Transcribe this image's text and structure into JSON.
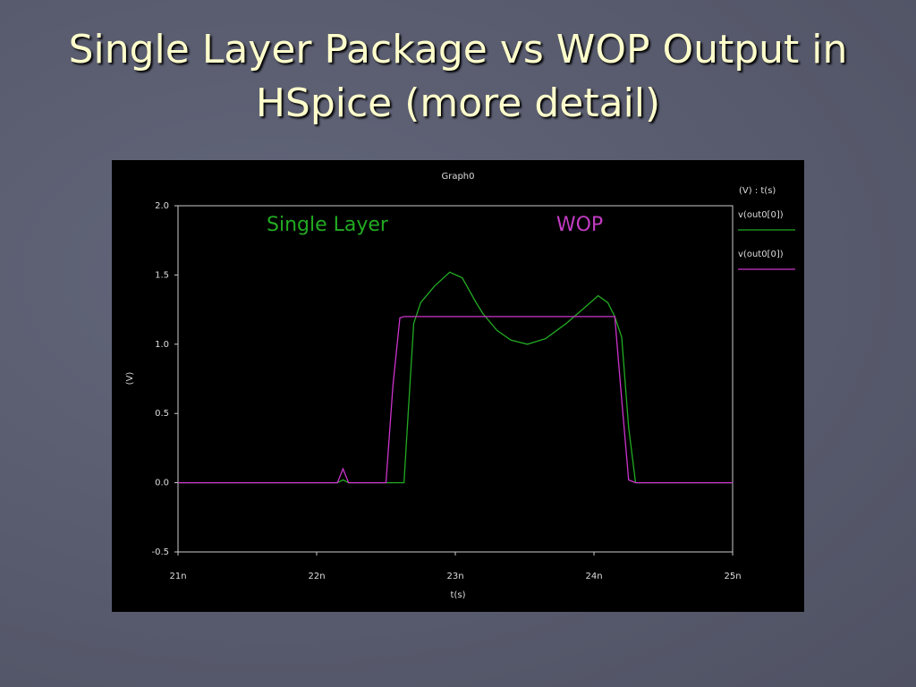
{
  "chart_data": {
    "type": "line",
    "page_title": "Single Layer Package vs WOP Output in HSpice (more detail)",
    "title": "Graph0",
    "xlabel": "t(s)",
    "ylabel": "(V)",
    "legend_title": "(V) : t(s)",
    "annotations": [
      {
        "text": "Single Layer",
        "color": "#22aa22"
      },
      {
        "text": "WOP",
        "color": "#c23cc2"
      }
    ],
    "x": [
      21,
      22.15,
      22.19,
      22.23,
      22.5,
      22.55,
      22.6,
      22.63,
      22.66,
      22.7,
      22.75,
      22.85,
      22.96,
      23.05,
      23.15,
      23.2,
      23.3,
      23.4,
      23.52,
      23.65,
      23.8,
      23.95,
      24.03,
      24.1,
      24.15,
      24.2,
      24.25,
      24.3,
      25
    ],
    "series": [
      {
        "name": "v(out0[0])",
        "color": "#22aa22",
        "values": [
          0,
          0,
          0.02,
          0,
          0,
          0,
          0,
          0,
          0.5,
          1.15,
          1.3,
          1.42,
          1.52,
          1.48,
          1.3,
          1.22,
          1.1,
          1.03,
          1.0,
          1.04,
          1.15,
          1.28,
          1.35,
          1.3,
          1.2,
          1.05,
          0.4,
          0,
          0
        ]
      },
      {
        "name": "v(out0[0])",
        "color": "#cc33cc",
        "values": [
          0,
          0,
          0.1,
          0,
          0,
          0.7,
          1.19,
          1.2,
          1.2,
          1.2,
          1.2,
          1.2,
          1.2,
          1.2,
          1.2,
          1.2,
          1.2,
          1.2,
          1.2,
          1.2,
          1.2,
          1.2,
          1.2,
          1.2,
          1.2,
          0.6,
          0.02,
          0,
          0
        ]
      }
    ],
    "xlim": [
      21,
      25
    ],
    "xticks": [
      {
        "value": 21,
        "label": "21n"
      },
      {
        "value": 22,
        "label": "22n"
      },
      {
        "value": 23,
        "label": "23n"
      },
      {
        "value": 24,
        "label": "24n"
      },
      {
        "value": 25,
        "label": "25n"
      }
    ],
    "ylim": [
      -0.5,
      2
    ],
    "yticks": [
      {
        "value": 2,
        "label": "2.0"
      },
      1.5,
      {
        "value": 1,
        "label": "1.0"
      },
      0.5,
      {
        "value": 0,
        "label": "0.0"
      },
      -0.5
    ]
  }
}
